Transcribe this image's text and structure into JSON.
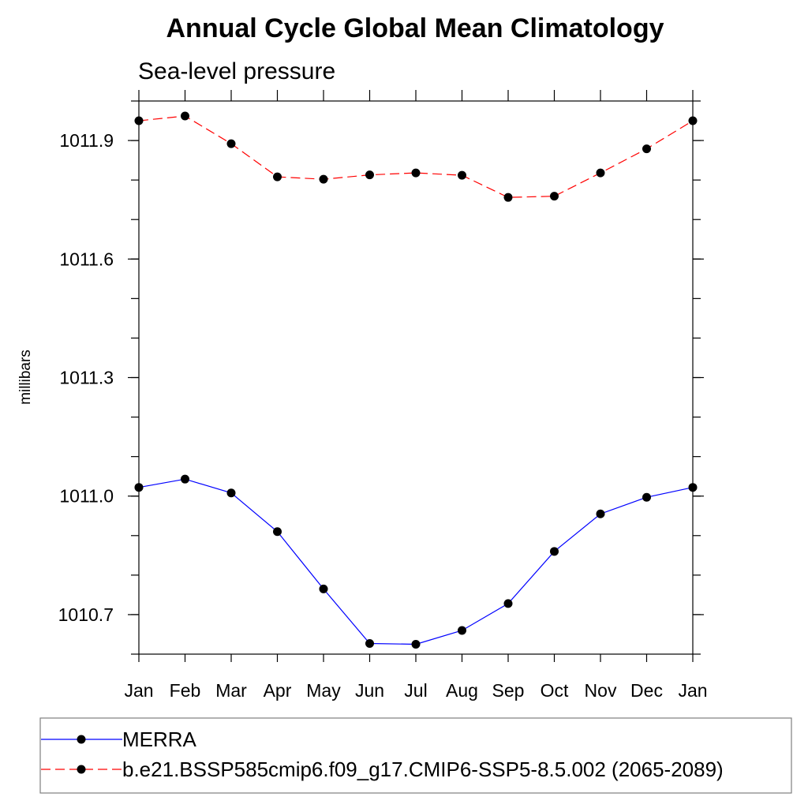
{
  "chart_data": {
    "type": "line",
    "title": "Annual Cycle Global Mean Climatology",
    "subtitle": "Sea-level pressure",
    "xlabel": "",
    "ylabel": "millibars",
    "categories": [
      "Jan",
      "Feb",
      "Mar",
      "Apr",
      "May",
      "Jun",
      "Jul",
      "Aug",
      "Sep",
      "Oct",
      "Nov",
      "Dec",
      "Jan"
    ],
    "ylim": [
      1010.6,
      1012.0
    ],
    "yticks": [
      1010.7,
      1011.0,
      1011.3,
      1011.6,
      1011.9
    ],
    "ytick_labels": [
      "1010.7",
      "1011.0",
      "1011.3",
      "1011.6",
      "1011.9"
    ],
    "grid": false,
    "legend_position": "bottom",
    "series": [
      {
        "name": "MERRA",
        "color": "#0000ff",
        "line_style": "solid",
        "marker": "filled-circle",
        "values": [
          1011.022,
          1011.043,
          1011.008,
          1010.91,
          1010.765,
          1010.627,
          1010.625,
          1010.66,
          1010.728,
          1010.86,
          1010.955,
          1010.997,
          1011.022
        ]
      },
      {
        "name": "b.e21.BSSP585cmip6.f09_g17.CMIP6-SSP5-8.5.002 (2065-2089)",
        "color": "#ff0000",
        "line_style": "dashed",
        "marker": "filled-circle",
        "values": [
          1011.95,
          1011.962,
          1011.892,
          1011.808,
          1011.802,
          1011.813,
          1011.818,
          1011.812,
          1011.756,
          1011.759,
          1011.818,
          1011.879,
          1011.95
        ]
      }
    ]
  }
}
